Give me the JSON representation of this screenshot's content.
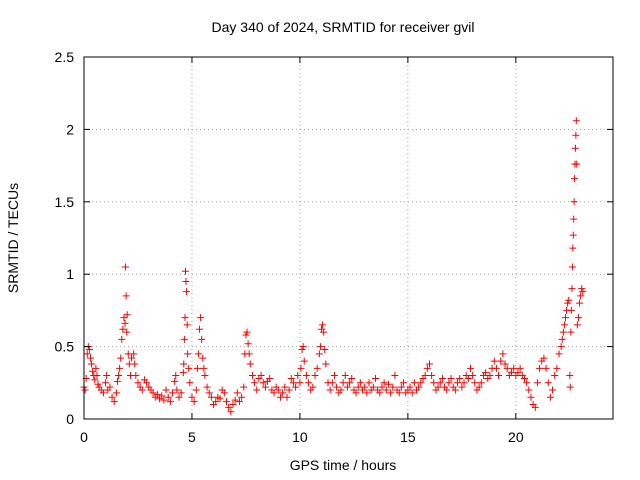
{
  "chart_data": {
    "type": "scatter",
    "title": "Day 340 of 2024, SRMTID for receiver gvil",
    "xlabel": "GPS time / hours",
    "ylabel": "SRMTID / TECUs",
    "xlim": [
      0,
      24.5
    ],
    "ylim": [
      0,
      2.5
    ],
    "xticks": [
      0,
      5,
      10,
      15,
      20
    ],
    "xtick_labels": [
      "0",
      "5",
      "10",
      "15",
      "20"
    ],
    "yticks": [
      0,
      0.5,
      1,
      1.5,
      2,
      2.5
    ],
    "ytick_labels": [
      "0",
      "0.5",
      "1",
      "1.5",
      "2",
      "2.5"
    ],
    "grid": true,
    "marker": "+",
    "color": "#ff0000",
    "series": [
      {
        "name": "SRMTID",
        "points": [
          [
            0.0,
            0.22
          ],
          [
            0.05,
            0.2
          ],
          [
            0.1,
            0.28
          ],
          [
            0.15,
            0.45
          ],
          [
            0.2,
            0.5
          ],
          [
            0.25,
            0.48
          ],
          [
            0.3,
            0.42
          ],
          [
            0.35,
            0.38
          ],
          [
            0.4,
            0.33
          ],
          [
            0.45,
            0.3
          ],
          [
            0.5,
            0.27
          ],
          [
            0.55,
            0.35
          ],
          [
            0.6,
            0.3
          ],
          [
            0.65,
            0.24
          ],
          [
            0.7,
            0.22
          ],
          [
            0.8,
            0.2
          ],
          [
            0.9,
            0.18
          ],
          [
            1.0,
            0.25
          ],
          [
            1.05,
            0.3
          ],
          [
            1.1,
            0.2
          ],
          [
            1.2,
            0.22
          ],
          [
            1.3,
            0.15
          ],
          [
            1.4,
            0.12
          ],
          [
            1.5,
            0.18
          ],
          [
            1.55,
            0.26
          ],
          [
            1.6,
            0.3
          ],
          [
            1.65,
            0.35
          ],
          [
            1.7,
            0.42
          ],
          [
            1.75,
            0.55
          ],
          [
            1.8,
            0.62
          ],
          [
            1.85,
            0.7
          ],
          [
            1.9,
            0.66
          ],
          [
            1.92,
            1.05
          ],
          [
            1.95,
            0.85
          ],
          [
            1.98,
            0.6
          ],
          [
            2.0,
            0.72
          ],
          [
            2.05,
            0.45
          ],
          [
            2.1,
            0.38
          ],
          [
            2.15,
            0.3
          ],
          [
            2.2,
            0.42
          ],
          [
            2.3,
            0.45
          ],
          [
            2.35,
            0.38
          ],
          [
            2.4,
            0.3
          ],
          [
            2.5,
            0.25
          ],
          [
            2.6,
            0.22
          ],
          [
            2.7,
            0.2
          ],
          [
            2.8,
            0.27
          ],
          [
            2.9,
            0.25
          ],
          [
            3.0,
            0.22
          ],
          [
            3.1,
            0.2
          ],
          [
            3.2,
            0.18
          ],
          [
            3.3,
            0.15
          ],
          [
            3.4,
            0.17
          ],
          [
            3.5,
            0.14
          ],
          [
            3.6,
            0.16
          ],
          [
            3.7,
            0.13
          ],
          [
            3.8,
            0.2
          ],
          [
            3.9,
            0.15
          ],
          [
            4.0,
            0.12
          ],
          [
            4.1,
            0.18
          ],
          [
            4.2,
            0.26
          ],
          [
            4.25,
            0.3
          ],
          [
            4.3,
            0.2
          ],
          [
            4.4,
            0.15
          ],
          [
            4.5,
            0.18
          ],
          [
            4.6,
            0.32
          ],
          [
            4.62,
            0.38
          ],
          [
            4.65,
            0.55
          ],
          [
            4.68,
            0.7
          ],
          [
            4.7,
            1.02
          ],
          [
            4.72,
            0.95
          ],
          [
            4.75,
            0.88
          ],
          [
            4.78,
            0.65
          ],
          [
            4.8,
            0.45
          ],
          [
            4.85,
            0.35
          ],
          [
            4.9,
            0.25
          ],
          [
            5.0,
            0.15
          ],
          [
            5.1,
            0.12
          ],
          [
            5.2,
            0.2
          ],
          [
            5.25,
            0.35
          ],
          [
            5.3,
            0.45
          ],
          [
            5.35,
            0.62
          ],
          [
            5.4,
            0.7
          ],
          [
            5.45,
            0.55
          ],
          [
            5.5,
            0.42
          ],
          [
            5.55,
            0.35
          ],
          [
            5.6,
            0.3
          ],
          [
            5.7,
            0.22
          ],
          [
            5.8,
            0.18
          ],
          [
            5.9,
            0.15
          ],
          [
            6.0,
            0.1
          ],
          [
            6.1,
            0.12
          ],
          [
            6.2,
            0.15
          ],
          [
            6.3,
            0.14
          ],
          [
            6.4,
            0.2
          ],
          [
            6.5,
            0.18
          ],
          [
            6.6,
            0.12
          ],
          [
            6.7,
            0.08
          ],
          [
            6.8,
            0.05
          ],
          [
            6.9,
            0.1
          ],
          [
            7.0,
            0.13
          ],
          [
            7.1,
            0.18
          ],
          [
            7.2,
            0.12
          ],
          [
            7.3,
            0.15
          ],
          [
            7.4,
            0.22
          ],
          [
            7.45,
            0.45
          ],
          [
            7.5,
            0.58
          ],
          [
            7.55,
            0.6
          ],
          [
            7.6,
            0.52
          ],
          [
            7.65,
            0.45
          ],
          [
            7.7,
            0.38
          ],
          [
            7.8,
            0.3
          ],
          [
            7.9,
            0.25
          ],
          [
            8.0,
            0.2
          ],
          [
            8.1,
            0.28
          ],
          [
            8.2,
            0.3
          ],
          [
            8.3,
            0.25
          ],
          [
            8.4,
            0.22
          ],
          [
            8.5,
            0.26
          ],
          [
            8.6,
            0.28
          ],
          [
            8.7,
            0.2
          ],
          [
            8.8,
            0.18
          ],
          [
            8.9,
            0.22
          ],
          [
            9.0,
            0.2
          ],
          [
            9.1,
            0.15
          ],
          [
            9.2,
            0.18
          ],
          [
            9.3,
            0.22
          ],
          [
            9.4,
            0.15
          ],
          [
            9.5,
            0.2
          ],
          [
            9.6,
            0.28
          ],
          [
            9.7,
            0.25
          ],
          [
            9.8,
            0.22
          ],
          [
            9.9,
            0.3
          ],
          [
            10.0,
            0.25
          ],
          [
            10.05,
            0.35
          ],
          [
            10.1,
            0.48
          ],
          [
            10.15,
            0.5
          ],
          [
            10.2,
            0.4
          ],
          [
            10.3,
            0.3
          ],
          [
            10.4,
            0.25
          ],
          [
            10.5,
            0.2
          ],
          [
            10.6,
            0.22
          ],
          [
            10.7,
            0.3
          ],
          [
            10.8,
            0.35
          ],
          [
            10.9,
            0.45
          ],
          [
            10.95,
            0.5
          ],
          [
            11.0,
            0.62
          ],
          [
            11.05,
            0.65
          ],
          [
            11.1,
            0.6
          ],
          [
            11.15,
            0.48
          ],
          [
            11.2,
            0.38
          ],
          [
            11.3,
            0.25
          ],
          [
            11.4,
            0.2
          ],
          [
            11.5,
            0.25
          ],
          [
            11.6,
            0.3
          ],
          [
            11.7,
            0.22
          ],
          [
            11.8,
            0.18
          ],
          [
            11.9,
            0.2
          ],
          [
            12.0,
            0.25
          ],
          [
            12.1,
            0.3
          ],
          [
            12.2,
            0.22
          ],
          [
            12.3,
            0.25
          ],
          [
            12.4,
            0.28
          ],
          [
            12.5,
            0.2
          ],
          [
            12.6,
            0.18
          ],
          [
            12.7,
            0.22
          ],
          [
            12.8,
            0.25
          ],
          [
            12.9,
            0.2
          ],
          [
            13.0,
            0.22
          ],
          [
            13.1,
            0.18
          ],
          [
            13.2,
            0.25
          ],
          [
            13.3,
            0.2
          ],
          [
            13.4,
            0.22
          ],
          [
            13.5,
            0.28
          ],
          [
            13.6,
            0.2
          ],
          [
            13.7,
            0.18
          ],
          [
            13.8,
            0.22
          ],
          [
            13.9,
            0.25
          ],
          [
            14.0,
            0.2
          ],
          [
            14.1,
            0.24
          ],
          [
            14.2,
            0.18
          ],
          [
            14.3,
            0.22
          ],
          [
            14.4,
            0.3
          ],
          [
            14.5,
            0.2
          ],
          [
            14.6,
            0.18
          ],
          [
            14.7,
            0.22
          ],
          [
            14.8,
            0.25
          ],
          [
            14.9,
            0.18
          ],
          [
            15.0,
            0.2
          ],
          [
            15.1,
            0.22
          ],
          [
            15.2,
            0.18
          ],
          [
            15.3,
            0.25
          ],
          [
            15.4,
            0.2
          ],
          [
            15.5,
            0.22
          ],
          [
            15.6,
            0.25
          ],
          [
            15.7,
            0.28
          ],
          [
            15.8,
            0.3
          ],
          [
            15.9,
            0.35
          ],
          [
            16.0,
            0.38
          ],
          [
            16.1,
            0.3
          ],
          [
            16.2,
            0.25
          ],
          [
            16.3,
            0.2
          ],
          [
            16.4,
            0.22
          ],
          [
            16.5,
            0.25
          ],
          [
            16.6,
            0.28
          ],
          [
            16.7,
            0.22
          ],
          [
            16.8,
            0.2
          ],
          [
            16.9,
            0.25
          ],
          [
            17.0,
            0.28
          ],
          [
            17.1,
            0.22
          ],
          [
            17.2,
            0.2
          ],
          [
            17.3,
            0.25
          ],
          [
            17.4,
            0.28
          ],
          [
            17.5,
            0.22
          ],
          [
            17.6,
            0.25
          ],
          [
            17.7,
            0.3
          ],
          [
            17.8,
            0.28
          ],
          [
            17.9,
            0.35
          ],
          [
            18.0,
            0.3
          ],
          [
            18.1,
            0.25
          ],
          [
            18.2,
            0.2
          ],
          [
            18.3,
            0.22
          ],
          [
            18.4,
            0.25
          ],
          [
            18.5,
            0.3
          ],
          [
            18.6,
            0.32
          ],
          [
            18.7,
            0.28
          ],
          [
            18.8,
            0.3
          ],
          [
            18.9,
            0.35
          ],
          [
            19.0,
            0.4
          ],
          [
            19.1,
            0.35
          ],
          [
            19.2,
            0.3
          ],
          [
            19.3,
            0.4
          ],
          [
            19.4,
            0.45
          ],
          [
            19.5,
            0.38
          ],
          [
            19.6,
            0.35
          ],
          [
            19.7,
            0.3
          ],
          [
            19.8,
            0.32
          ],
          [
            19.9,
            0.35
          ],
          [
            20.0,
            0.3
          ],
          [
            20.1,
            0.32
          ],
          [
            20.2,
            0.35
          ],
          [
            20.3,
            0.3
          ],
          [
            20.4,
            0.28
          ],
          [
            20.5,
            0.25
          ],
          [
            20.6,
            0.2
          ],
          [
            20.7,
            0.15
          ],
          [
            20.8,
            0.1
          ],
          [
            20.9,
            0.08
          ],
          [
            21.0,
            0.25
          ],
          [
            21.1,
            0.35
          ],
          [
            21.2,
            0.4
          ],
          [
            21.3,
            0.42
          ],
          [
            21.4,
            0.35
          ],
          [
            21.5,
            0.25
          ],
          [
            21.6,
            0.15
          ],
          [
            21.7,
            0.2
          ],
          [
            21.8,
            0.3
          ],
          [
            21.9,
            0.35
          ],
          [
            22.0,
            0.45
          ],
          [
            22.1,
            0.5
          ],
          [
            22.15,
            0.55
          ],
          [
            22.2,
            0.6
          ],
          [
            22.25,
            0.65
          ],
          [
            22.3,
            0.7
          ],
          [
            22.35,
            0.75
          ],
          [
            22.4,
            0.8
          ],
          [
            22.45,
            0.82
          ],
          [
            22.5,
            0.3
          ],
          [
            22.52,
            0.22
          ],
          [
            22.55,
            0.6
          ],
          [
            22.57,
            0.75
          ],
          [
            22.6,
            0.9
          ],
          [
            22.62,
            1.05
          ],
          [
            22.64,
            1.18
          ],
          [
            22.66,
            1.27
          ],
          [
            22.68,
            1.38
          ],
          [
            22.7,
            1.5
          ],
          [
            22.72,
            1.66
          ],
          [
            22.74,
            1.76
          ],
          [
            22.76,
            1.87
          ],
          [
            22.78,
            1.96
          ],
          [
            22.8,
            2.06
          ],
          [
            22.82,
            1.76
          ],
          [
            22.85,
            0.65
          ],
          [
            22.9,
            0.7
          ],
          [
            22.95,
            0.8
          ],
          [
            23.0,
            0.85
          ],
          [
            23.05,
            0.9
          ],
          [
            23.1,
            0.88
          ]
        ]
      }
    ]
  }
}
